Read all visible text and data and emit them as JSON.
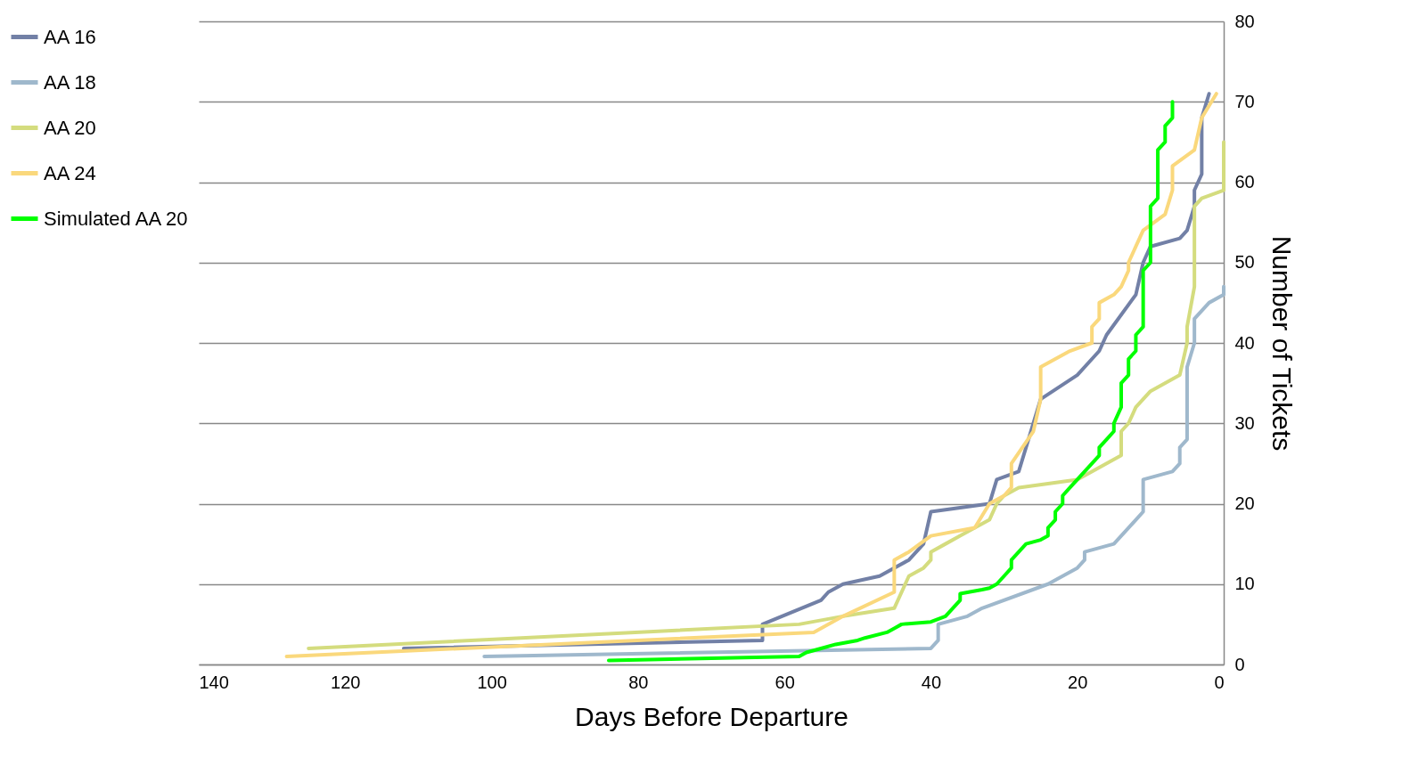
{
  "chart_data": {
    "type": "line",
    "xlabel": "Days Before Departure",
    "ylabel": "Number of Tickets",
    "xlim": [
      140,
      0
    ],
    "xticks": [
      140,
      120,
      100,
      80,
      60,
      40,
      20,
      0
    ],
    "ylim": [
      0,
      80
    ],
    "yticks": [
      0,
      10,
      20,
      30,
      40,
      50,
      60,
      70,
      80
    ],
    "grid": "y",
    "legend": "left",
    "series": [
      {
        "name": "AA 16",
        "color": "#7280a6",
        "x": [
          112,
          63,
          63,
          55,
          54,
          52,
          47,
          43,
          41,
          40,
          32,
          31,
          28,
          27,
          25,
          20,
          17,
          16,
          12,
          11,
          10,
          6,
          5,
          4,
          4,
          3,
          3,
          2
        ],
        "values": [
          2,
          3,
          5,
          8,
          9,
          10,
          11,
          13,
          15,
          19,
          20,
          23,
          24,
          27,
          33,
          36,
          39,
          41,
          46,
          50,
          52,
          53,
          54,
          57,
          59,
          61,
          68,
          71
        ]
      },
      {
        "name": "AA 18",
        "color": "#9fb8cc",
        "x": [
          101,
          40,
          39,
          39,
          35,
          33,
          24,
          20,
          19,
          19,
          15,
          12,
          11,
          11,
          7,
          6,
          6,
          5,
          5,
          4,
          4,
          2,
          0,
          0
        ],
        "values": [
          1,
          2,
          3,
          5,
          6,
          7,
          10,
          12,
          13,
          14,
          15,
          18,
          19,
          23,
          24,
          25,
          27,
          28,
          37,
          40,
          43,
          45,
          46,
          47
        ]
      },
      {
        "name": "AA 20",
        "color": "#d4dc7e",
        "x": [
          125,
          58,
          52,
          45,
          43,
          41,
          40,
          40,
          38,
          36,
          34,
          32,
          31,
          30,
          28,
          20,
          14,
          14,
          13,
          12,
          10,
          6,
          5,
          5,
          4,
          4,
          3,
          0,
          0
        ],
        "values": [
          2,
          5,
          6,
          7,
          11,
          12,
          13,
          14,
          15,
          16,
          17,
          18,
          20,
          21,
          22,
          23,
          26,
          29,
          30,
          32,
          34,
          36,
          40,
          42,
          47,
          57,
          58,
          59,
          65
        ]
      },
      {
        "name": "AA 24",
        "color": "#fad87c",
        "x": [
          128,
          56,
          52,
          45,
          45,
          43,
          40,
          34,
          32,
          30,
          29,
          29,
          26,
          25,
          25,
          23,
          21,
          18,
          18,
          17,
          17,
          15,
          14,
          13,
          13,
          12,
          11,
          8,
          7,
          7,
          7,
          4,
          3,
          1
        ],
        "values": [
          1,
          4,
          6,
          9,
          13,
          14,
          16,
          17,
          20,
          21,
          22,
          25,
          29,
          33,
          37,
          38,
          39,
          40,
          42,
          43,
          45,
          46,
          47,
          49,
          50,
          52,
          54,
          56,
          59,
          60,
          62,
          64,
          68,
          71
        ]
      },
      {
        "name": "Simulated AA 20",
        "color": "#00ff00",
        "x": [
          84,
          58,
          57,
          55,
          53,
          50,
          49,
          46,
          45,
          44,
          40,
          38,
          37,
          36,
          36,
          33,
          32,
          31,
          30,
          29,
          29,
          28,
          27,
          25,
          24,
          24,
          23,
          23,
          22,
          22,
          21,
          19,
          18,
          17,
          17,
          16,
          15,
          15,
          14,
          14,
          13,
          13,
          12,
          12,
          11,
          11,
          11,
          11,
          10,
          10,
          9,
          9,
          8,
          8,
          7,
          7
        ],
        "values": [
          0.5,
          1,
          1.5,
          2,
          2.5,
          3,
          3.3,
          4,
          4.5,
          5,
          5.3,
          6,
          7,
          8,
          8.8,
          9.3,
          9.5,
          10,
          11,
          12,
          13,
          14,
          15,
          15.5,
          16,
          17,
          18,
          19,
          20,
          21,
          22,
          24,
          25,
          26,
          27,
          28,
          29,
          30,
          32,
          35,
          36,
          38,
          39,
          41,
          42,
          44,
          47,
          49,
          50,
          57,
          58,
          64,
          65,
          67,
          68,
          70
        ]
      }
    ]
  }
}
